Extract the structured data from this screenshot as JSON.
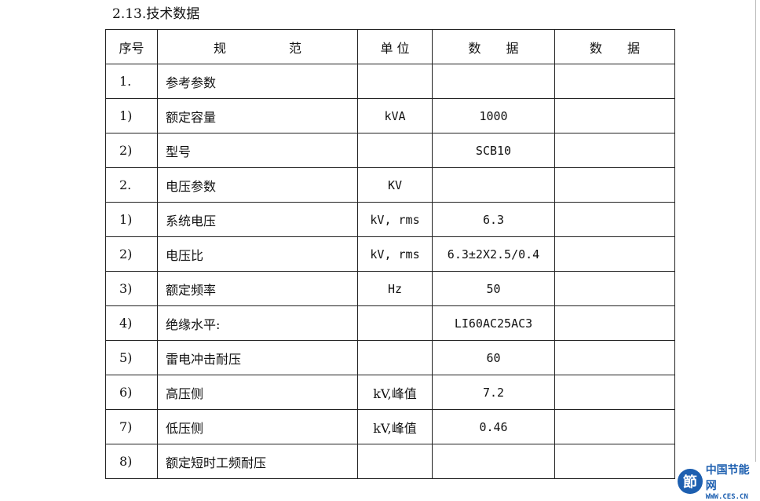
{
  "title": "2.13.技术数据",
  "header": [
    "序号",
    "规　　　　　范",
    "单 位",
    "数　　据",
    "数　　据"
  ],
  "rows": [
    [
      "1.",
      "参考参数",
      "",
      "",
      ""
    ],
    [
      "1)",
      "额定容量",
      "kVA",
      "1000",
      ""
    ],
    [
      "2)",
      "型号",
      "",
      "SCB10",
      ""
    ],
    [
      "2.",
      "电压参数",
      "KV",
      "",
      ""
    ],
    [
      "1)",
      "系统电压",
      "kV, rms",
      "6.3",
      ""
    ],
    [
      "2)",
      "电压比",
      "kV, rms",
      "6.3±2X2.5/0.4",
      ""
    ],
    [
      "3)",
      "额定频率",
      "Hz",
      "50",
      ""
    ],
    [
      "4)",
      "绝缘水平:",
      "",
      "LI60AC25AC3",
      ""
    ],
    [
      "5)",
      "雷电冲击耐压",
      "",
      "60",
      ""
    ],
    [
      "6)",
      "高压侧",
      "kV,峰值",
      "7.2",
      ""
    ],
    [
      "7)",
      "低压侧",
      "kV,峰值",
      "0.46",
      ""
    ],
    [
      "8)",
      "额定短时工频耐压",
      "",
      "",
      ""
    ]
  ],
  "watermark": {
    "name": "中国节能网",
    "url": "WWW.CES.CN"
  }
}
